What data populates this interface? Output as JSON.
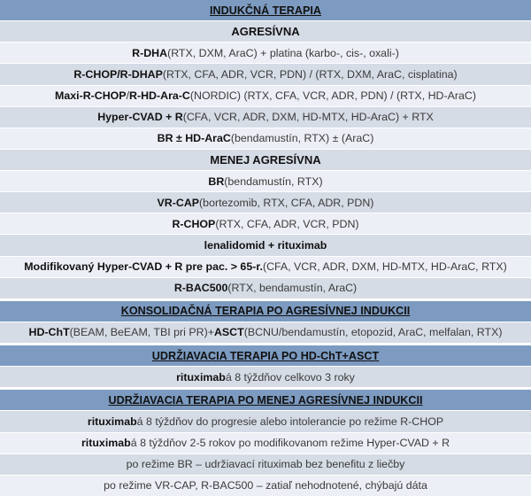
{
  "colors": {
    "section_bg": "#7d9bc1",
    "subheader_text": "#c00000",
    "row_dark": "#d6dce6",
    "row_light": "#eceff5"
  },
  "rows": [
    {
      "type": "section",
      "parts": [
        {
          "text": "INDUKČNÁ TERAPIA",
          "bold": true
        }
      ]
    },
    {
      "type": "sub",
      "parts": [
        {
          "text": "AGRESÍVNA",
          "bold": true
        }
      ]
    },
    {
      "type": "b",
      "parts": [
        {
          "text": "R-DHA",
          "bold": true
        },
        {
          "text": " (RTX, DXM, AraC) + platina (karbo-, cis-, oxali-)"
        }
      ]
    },
    {
      "type": "a",
      "parts": [
        {
          "text": "R-CHOP/R-DHAP",
          "bold": true
        },
        {
          "text": " (RTX, CFA, ADR, VCR, PDN) / (RTX, DXM, AraC, cisplatina)"
        }
      ]
    },
    {
      "type": "b",
      "parts": [
        {
          "text": "Maxi-R-CHOP",
          "bold": true
        },
        {
          "text": " / "
        },
        {
          "text": "R-HD-Ara-C",
          "bold": true
        },
        {
          "text": " (NORDIC) (RTX, CFA, VCR, ADR, PDN) / (RTX, HD-AraC)"
        }
      ]
    },
    {
      "type": "a",
      "parts": [
        {
          "text": "Hyper-CVAD + R",
          "bold": true
        },
        {
          "text": " (CFA, VCR, ADR, DXM, HD-MTX, HD-AraC) + RTX"
        }
      ]
    },
    {
      "type": "b",
      "parts": [
        {
          "text": "BR ± HD-AraC",
          "bold": true
        },
        {
          "text": " (bendamustín, RTX) ± (AraC)"
        }
      ]
    },
    {
      "type": "sub",
      "parts": [
        {
          "text": "MENEJ AGRESÍVNA",
          "bold": true
        }
      ]
    },
    {
      "type": "b",
      "parts": [
        {
          "text": "BR",
          "bold": true
        },
        {
          "text": " (bendamustín, RTX)"
        }
      ]
    },
    {
      "type": "a",
      "parts": [
        {
          "text": "VR-CAP",
          "bold": true
        },
        {
          "text": " (bortezomib, RTX, CFA, ADR, PDN)"
        }
      ]
    },
    {
      "type": "b",
      "parts": [
        {
          "text": "R-CHOP",
          "bold": true
        },
        {
          "text": " (RTX, CFA, ADR, VCR, PDN)"
        }
      ]
    },
    {
      "type": "a",
      "parts": [
        {
          "text": "lenalidomid + rituximab",
          "bold": true
        }
      ]
    },
    {
      "type": "b",
      "parts": [
        {
          "text": "Modifikovaný Hyper-CVAD + R pre pac. > 65-r.",
          "bold": true
        },
        {
          "text": " (CFA, VCR, ADR, DXM, HD-MTX, HD-AraC, RTX)"
        }
      ]
    },
    {
      "type": "a",
      "parts": [
        {
          "text": "R-BAC500",
          "bold": true
        },
        {
          "text": " (RTX, bendamustín, AraC)"
        }
      ]
    },
    {
      "type": "section",
      "parts": [
        {
          "text": "KONSOLIDAČNÁ TERAPIA PO AGRESÍVNEJ INDUKCII",
          "bold": true
        }
      ]
    },
    {
      "type": "a",
      "parts": [
        {
          "text": "HD-ChT",
          "bold": true
        },
        {
          "text": " (BEAM, BeEAM, TBI pri PR)+ "
        },
        {
          "text": "ASCT",
          "bold": true
        },
        {
          "text": " (BCNU/bendamustín, etopozid, AraC, melfalan, RTX)"
        }
      ]
    },
    {
      "type": "section",
      "parts": [
        {
          "text": "UDRŽIAVACIA TERAPIA PO HD-ChT+ASCT",
          "bold": true
        }
      ]
    },
    {
      "type": "a",
      "parts": [
        {
          "text": "rituximab",
          "bold": true
        },
        {
          "text": " á 8 týždňov celkovo 3 roky"
        }
      ]
    },
    {
      "type": "section",
      "parts": [
        {
          "text": "UDRŽIAVACIA TERAPIA PO MENEJ AGRESÍVNEJ INDUKCII",
          "bold": true
        }
      ]
    },
    {
      "type": "a",
      "parts": [
        {
          "text": "rituximab",
          "bold": true
        },
        {
          "text": " á 8 týždňov do progresie alebo intolerancie po režime R-CHOP"
        }
      ]
    },
    {
      "type": "b",
      "parts": [
        {
          "text": "rituximab",
          "bold": true
        },
        {
          "text": " á 8 týždňov 2-5 rokov po modifikovanom režime Hyper-CVAD + R"
        }
      ]
    },
    {
      "type": "a",
      "parts": [
        {
          "text": "po režime BR – udržiavací rituximab bez benefitu z liečby"
        }
      ]
    },
    {
      "type": "b",
      "parts": [
        {
          "text": "po režime VR-CAP, R-BAC500 – zatiaľ nehodnotené, chýbajú dáta"
        }
      ]
    }
  ]
}
